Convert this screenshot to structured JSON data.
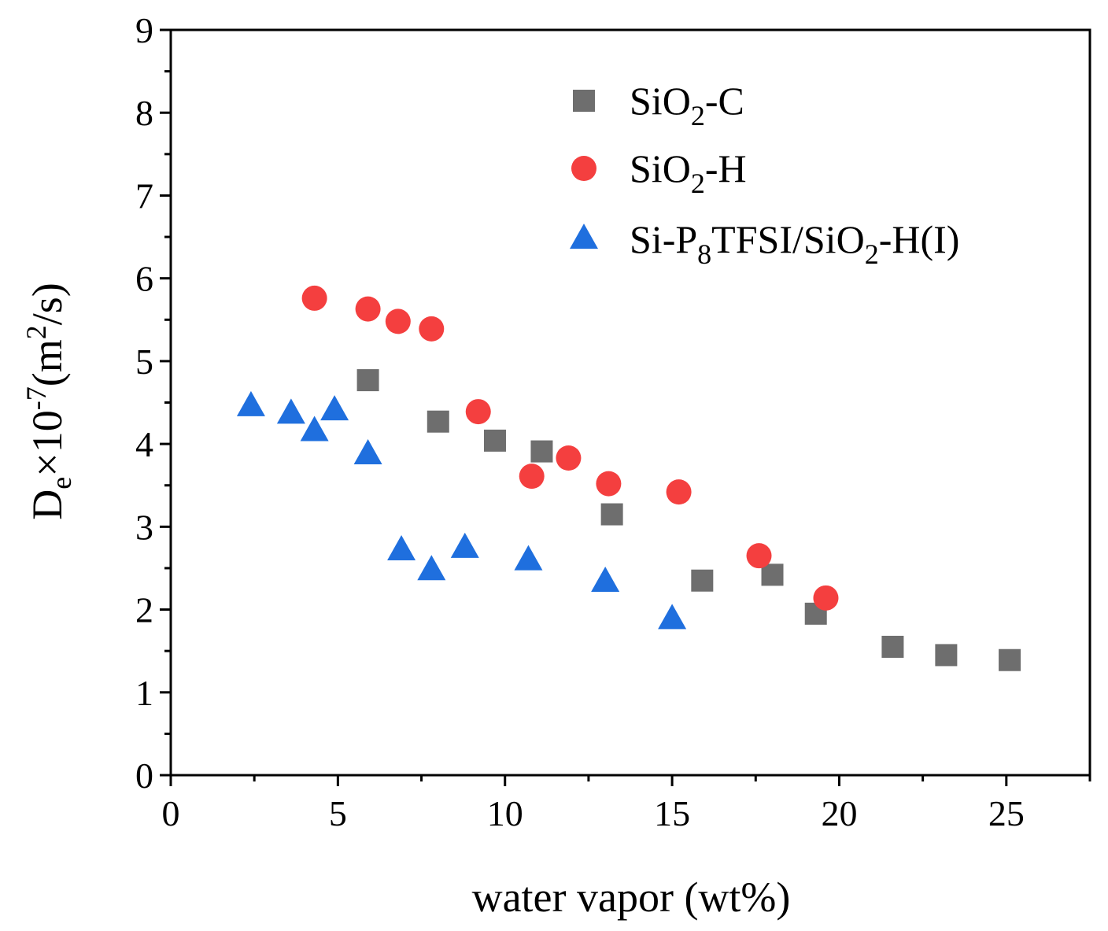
{
  "chart_data": {
    "type": "scatter",
    "xlabel": "water vapor (wt%)",
    "ylabel": {
      "base": "D",
      "base_sub": "e",
      "mid": "×10",
      "exp": "-7",
      "unit_open": "(m",
      "unit_sup": "2",
      "unit_close": "/s)"
    },
    "xlim": [
      0,
      27.5
    ],
    "ylim": [
      0,
      9
    ],
    "xticks": [
      "0",
      "5",
      "10",
      "15",
      "20",
      "25"
    ],
    "yticks": [
      "0",
      "1",
      "2",
      "3",
      "4",
      "5",
      "6",
      "7",
      "8",
      "9"
    ],
    "grid": false,
    "legend_position": "top-right",
    "series": [
      {
        "name": "SiO₂-C",
        "name_parts": {
          "a": "SiO",
          "sub": "2",
          "b": "-C",
          "c": "",
          "sub2": "",
          "d": ""
        },
        "marker": "square",
        "color": "#6e6e6e",
        "points": [
          {
            "x": 5.9,
            "y": 4.77
          },
          {
            "x": 8.0,
            "y": 4.27
          },
          {
            "x": 9.7,
            "y": 4.04
          },
          {
            "x": 11.1,
            "y": 3.91
          },
          {
            "x": 13.2,
            "y": 3.15
          },
          {
            "x": 15.9,
            "y": 2.35
          },
          {
            "x": 18.0,
            "y": 2.42
          },
          {
            "x": 19.3,
            "y": 1.95
          },
          {
            "x": 21.6,
            "y": 1.55
          },
          {
            "x": 23.2,
            "y": 1.45
          },
          {
            "x": 25.1,
            "y": 1.39
          }
        ]
      },
      {
        "name": "SiO₂-H",
        "name_parts": {
          "a": "SiO",
          "sub": "2",
          "b": "-H",
          "c": "",
          "sub2": "",
          "d": ""
        },
        "marker": "circle",
        "color": "#f43f3f",
        "points": [
          {
            "x": 4.3,
            "y": 5.76
          },
          {
            "x": 5.9,
            "y": 5.63
          },
          {
            "x": 6.8,
            "y": 5.48
          },
          {
            "x": 7.8,
            "y": 5.39
          },
          {
            "x": 9.2,
            "y": 4.39
          },
          {
            "x": 10.8,
            "y": 3.61
          },
          {
            "x": 11.9,
            "y": 3.83
          },
          {
            "x": 13.1,
            "y": 3.52
          },
          {
            "x": 15.2,
            "y": 3.42
          },
          {
            "x": 17.6,
            "y": 2.65
          },
          {
            "x": 19.6,
            "y": 2.14
          }
        ]
      },
      {
        "name": "Si-P₈TFSI/SiO₂-H(I)",
        "name_parts": {
          "a": "Si-P",
          "sub": "8",
          "b": "TFSI/SiO",
          "c": "",
          "sub2": "2",
          "d": "-H(I)"
        },
        "marker": "triangle",
        "color": "#1f6fde",
        "points": [
          {
            "x": 2.4,
            "y": 4.45
          },
          {
            "x": 3.6,
            "y": 4.36
          },
          {
            "x": 4.3,
            "y": 4.15
          },
          {
            "x": 4.9,
            "y": 4.4
          },
          {
            "x": 5.9,
            "y": 3.87
          },
          {
            "x": 6.9,
            "y": 2.71
          },
          {
            "x": 7.8,
            "y": 2.47
          },
          {
            "x": 8.8,
            "y": 2.74
          },
          {
            "x": 10.7,
            "y": 2.59
          },
          {
            "x": 13.0,
            "y": 2.33
          },
          {
            "x": 15.0,
            "y": 1.88
          }
        ]
      }
    ]
  }
}
